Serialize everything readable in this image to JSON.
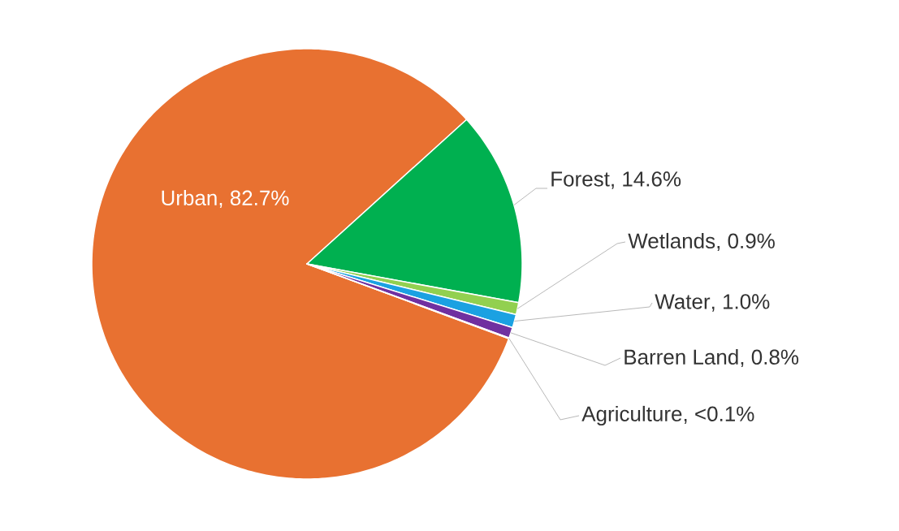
{
  "chart_data": {
    "type": "pie",
    "categories": [
      "Urban",
      "Forest",
      "Wetlands",
      "Water",
      "Barren Land",
      "Agriculture"
    ],
    "values": [
      82.7,
      14.6,
      0.9,
      1.0,
      0.8,
      0.05
    ],
    "value_labels": [
      ", 82.7%",
      ", 14.6%",
      ", 0.9%",
      ", 1.0%",
      ", 0.8%",
      ", <0.1%"
    ],
    "colors": [
      "#e87131",
      "#00b050",
      "#92d050",
      "#1ba1e2",
      "#7030a0",
      "#a5a5a5"
    ]
  }
}
